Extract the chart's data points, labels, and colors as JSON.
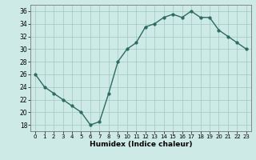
{
  "x": [
    0,
    1,
    2,
    3,
    4,
    5,
    6,
    7,
    8,
    9,
    10,
    11,
    12,
    13,
    14,
    15,
    16,
    17,
    18,
    19,
    20,
    21,
    22,
    23
  ],
  "y": [
    26,
    24,
    23,
    22,
    21,
    20,
    18,
    18.5,
    23,
    28,
    30,
    31,
    33.5,
    34,
    35,
    35.5,
    35,
    36,
    35,
    35,
    33,
    32,
    31,
    30
  ],
  "line_color": "#2d6b5e",
  "marker_color": "#2d6b5e",
  "bg_color": "#ceeae6",
  "grid_color": "#a0c8c0",
  "xlabel": "Humidex (Indice chaleur)",
  "ylim": [
    17,
    37
  ],
  "xlim": [
    -0.5,
    23.5
  ],
  "yticks": [
    18,
    20,
    22,
    24,
    26,
    28,
    30,
    32,
    34,
    36
  ],
  "xticks": [
    0,
    1,
    2,
    3,
    4,
    5,
    6,
    7,
    8,
    9,
    10,
    11,
    12,
    13,
    14,
    15,
    16,
    17,
    18,
    19,
    20,
    21,
    22,
    23
  ]
}
